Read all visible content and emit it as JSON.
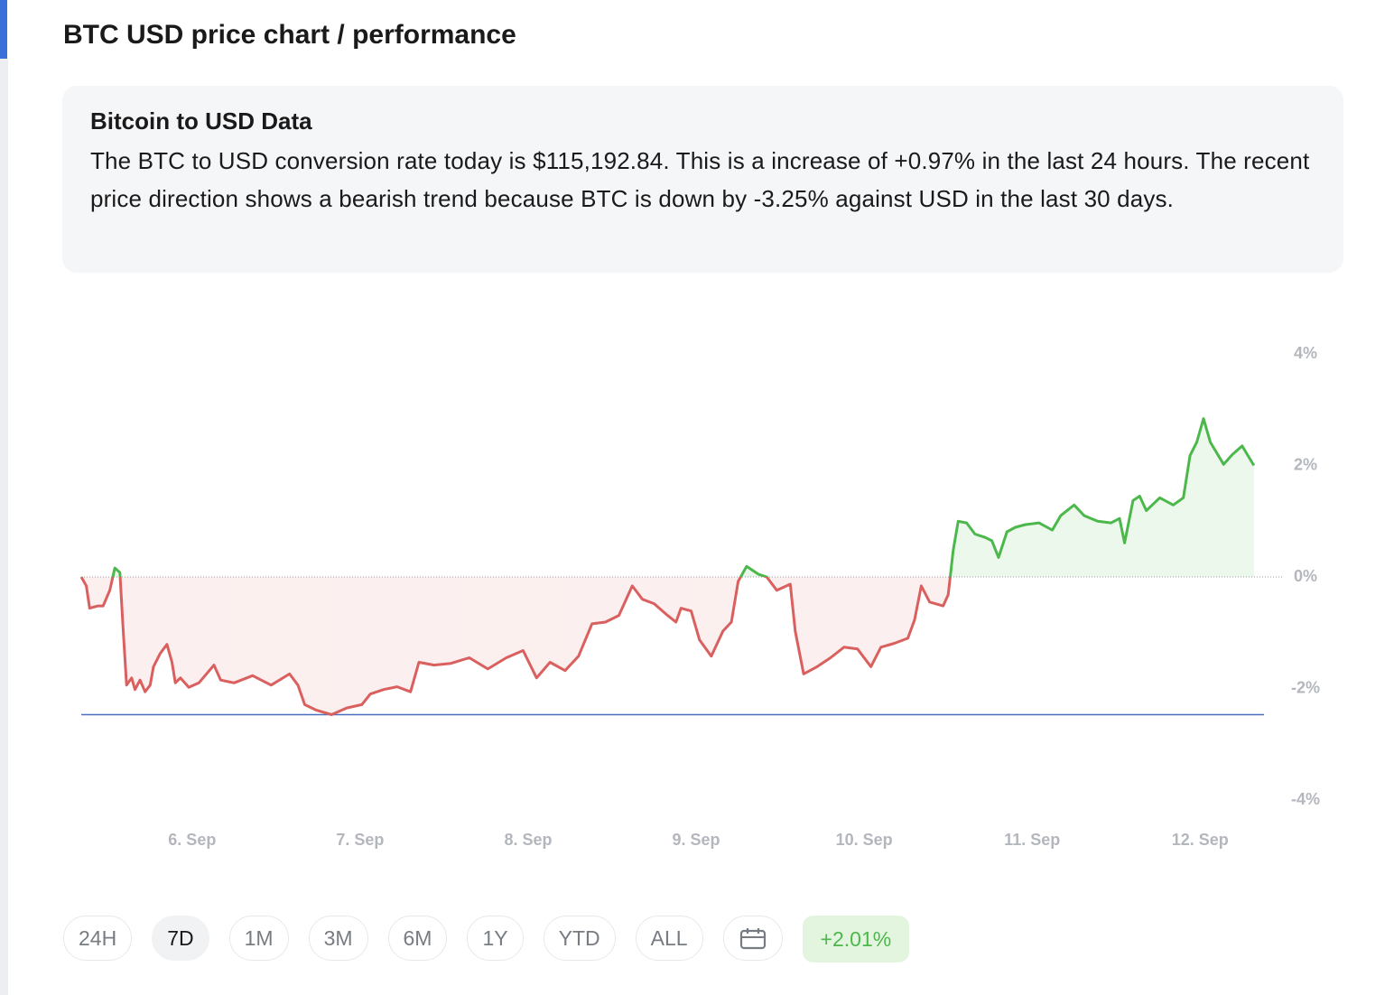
{
  "header": {
    "title": "BTC USD price chart / performance"
  },
  "info": {
    "heading": "Bitcoin to USD Data",
    "text": "The BTC to USD conversion rate today is $115,192.84. This is a increase of +0.97% in the last 24 hours. The recent price direction shows a bearish trend because BTC is down by -3.25% against USD in the last 30 days."
  },
  "chart_data": {
    "type": "line",
    "x": [
      5.34,
      5.37,
      5.39,
      5.44,
      5.47,
      5.51,
      5.54,
      5.57,
      5.59,
      5.61,
      5.64,
      5.66,
      5.69,
      5.72,
      5.75,
      5.77,
      5.81,
      5.85,
      5.88,
      5.9,
      5.93,
      5.98,
      6.04,
      6.13,
      6.17,
      6.25,
      6.36,
      6.47,
      6.58,
      6.63,
      6.67,
      6.74,
      6.83,
      6.92,
      7.01,
      7.06,
      7.14,
      7.22,
      7.3,
      7.35,
      7.44,
      7.54,
      7.65,
      7.76,
      7.87,
      7.97,
      8.05,
      8.13,
      8.22,
      8.3,
      8.38,
      8.46,
      8.54,
      8.62,
      8.68,
      8.75,
      8.83,
      8.88,
      8.91,
      8.97,
      9.02,
      9.09,
      9.16,
      9.21,
      9.25,
      9.3,
      9.37,
      9.42,
      9.48,
      9.56,
      9.59,
      9.64,
      9.72,
      9.8,
      9.88,
      9.96,
      10.04,
      10.1,
      10.18,
      10.26,
      10.3,
      10.34,
      10.39,
      10.47,
      10.5,
      10.53,
      10.56,
      10.61,
      10.66,
      10.72,
      10.76,
      10.8,
      10.85,
      10.9,
      10.96,
      11.04,
      11.12,
      11.17,
      11.25,
      11.31,
      11.39,
      11.47,
      11.52,
      11.55,
      11.6,
      11.64,
      11.68,
      11.76,
      11.84,
      11.9,
      11.94,
      11.98,
      12.02,
      12.06,
      12.14,
      12.19,
      12.25,
      12.32
    ],
    "values": [
      0,
      -0.16,
      -0.56,
      -0.52,
      -0.52,
      -0.24,
      0.16,
      0.08,
      -0.97,
      -1.94,
      -1.81,
      -2.02,
      -1.85,
      -2.06,
      -1.94,
      -1.61,
      -1.37,
      -1.21,
      -1.53,
      -1.9,
      -1.81,
      -1.98,
      -1.9,
      -1.58,
      -1.85,
      -1.9,
      -1.77,
      -1.94,
      -1.74,
      -1.94,
      -2.29,
      -2.39,
      -2.47,
      -2.35,
      -2.29,
      -2.1,
      -2.02,
      -1.97,
      -2.06,
      -1.53,
      -1.58,
      -1.55,
      -1.45,
      -1.65,
      -1.45,
      -1.32,
      -1.81,
      -1.53,
      -1.68,
      -1.42,
      -0.84,
      -0.81,
      -0.69,
      -0.16,
      -0.4,
      -0.48,
      -0.69,
      -0.81,
      -0.56,
      -0.61,
      -1.13,
      -1.42,
      -0.97,
      -0.81,
      -0.08,
      0.19,
      0.05,
      0,
      -0.24,
      -0.13,
      -0.97,
      -1.74,
      -1.61,
      -1.45,
      -1.26,
      -1.29,
      -1.61,
      -1.26,
      -1.19,
      -1.1,
      -0.77,
      -0.16,
      -0.45,
      -0.52,
      -0.32,
      0.48,
      1.0,
      0.97,
      0.77,
      0.71,
      0.65,
      0.35,
      0.81,
      0.89,
      0.94,
      0.97,
      0.84,
      1.1,
      1.29,
      1.1,
      1.0,
      0.97,
      1.05,
      0.61,
      1.37,
      1.45,
      1.19,
      1.42,
      1.29,
      1.42,
      2.18,
      2.42,
      2.84,
      2.42,
      2.02,
      2.19,
      2.35,
      2.0
    ],
    "positive_color": "#4cb84c",
    "negative_color": "#d9605f",
    "min_line": -2.47,
    "min_line_color": "#4a6fc1",
    "xlim": [
      5.34,
      12.38
    ],
    "xticks": [
      {
        "value": 6,
        "label": "6. Sep"
      },
      {
        "value": 7,
        "label": "7. Sep"
      },
      {
        "value": 8,
        "label": "8. Sep"
      },
      {
        "value": 9,
        "label": "9. Sep"
      },
      {
        "value": 10,
        "label": "10. Sep"
      },
      {
        "value": 11,
        "label": "11. Sep"
      },
      {
        "value": 12,
        "label": "12. Sep"
      }
    ],
    "ylim": [
      -4,
      4
    ],
    "yticks": [
      {
        "value": 4,
        "label": "4%"
      },
      {
        "value": 2,
        "label": "2%"
      },
      {
        "value": 0,
        "label": "0%"
      },
      {
        "value": -2,
        "label": "-2%"
      },
      {
        "value": -4,
        "label": "-4%"
      }
    ]
  },
  "controls": {
    "ranges": [
      "24H",
      "7D",
      "1M",
      "3M",
      "6M",
      "1Y",
      "YTD",
      "ALL"
    ],
    "selected_range": "7D",
    "performance": "+2.01%"
  }
}
